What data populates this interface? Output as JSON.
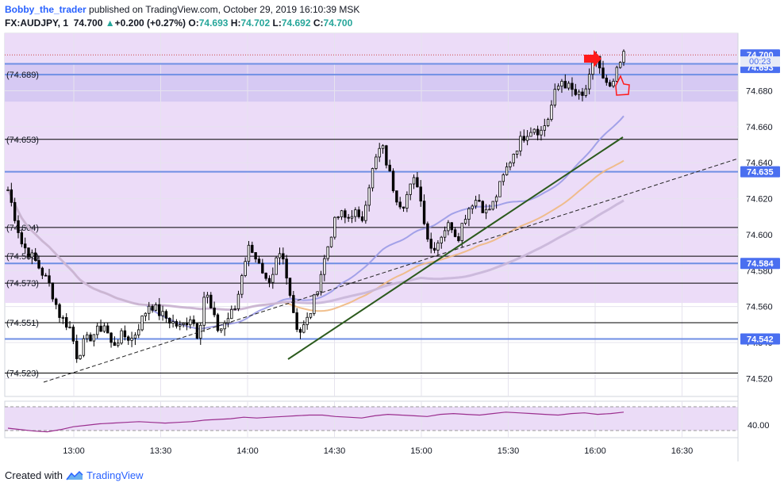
{
  "header": {
    "author": "Bobby_the_trader",
    "published": "published on TradingView.com, October 29, 2019 16:10:39 MSK",
    "symbol": "FX:AUDJPY, 1",
    "last": "74.700",
    "change_arrow": "▲",
    "change": "+0.200 (+0.27%)",
    "o_label": "O:",
    "o": "74.693",
    "h_label": "H:",
    "h": "74.702",
    "l_label": "L:",
    "l": "74.692",
    "c_label": "C:",
    "c": "74.700"
  },
  "footer": {
    "created_with": "Created with",
    "brand": "TradingView"
  },
  "colors": {
    "background_zone": "#ecdcf8",
    "dark_zone": "#d6c9f3",
    "blue_level": "#6f8fe4",
    "black_level": "#000000",
    "trendline": "#2b5a1c",
    "ma_fast": "#9a9ae6",
    "ma_mid": "#f0b880",
    "ma_slow": "#c9b6d8",
    "price_badge": "#4a6ff0",
    "annotation": "#ff1a1a",
    "rsi_line": "#9b2f8f"
  },
  "chart_data": {
    "type": "candlestick",
    "symbol": "FX:AUDJPY",
    "interval": "1",
    "x_tick_labels": [
      "13:00",
      "13:30",
      "14:00",
      "14:30",
      "15:00",
      "15:30",
      "16:00",
      "16:30"
    ],
    "ylim": [
      74.51,
      74.712
    ],
    "y_tick_labels": [
      "74.520",
      "74.540",
      "74.560",
      "74.580",
      "74.600",
      "74.620",
      "74.640",
      "74.660",
      "74.680"
    ],
    "y_tick_values": [
      74.52,
      74.54,
      74.56,
      74.58,
      74.6,
      74.62,
      74.64,
      74.66,
      74.68
    ],
    "horizontal_levels": [
      {
        "label": "(74.689)",
        "value": 74.689,
        "color": "blue"
      },
      {
        "label": "(74.653)",
        "value": 74.653,
        "color": "black"
      },
      {
        "label": "(74.604)",
        "value": 74.604,
        "color": "black"
      },
      {
        "label": "(74.588)",
        "value": 74.588,
        "color": "black"
      },
      {
        "label": "(74.573)",
        "value": 74.573,
        "color": "black"
      },
      {
        "label": "(74.551)",
        "value": 74.551,
        "color": "black"
      },
      {
        "label": "(74.523)",
        "value": 74.523,
        "color": "black"
      }
    ],
    "marked_levels": [
      {
        "label": "74.700",
        "value": 74.7
      },
      {
        "label": "74.693",
        "value": 74.693
      },
      {
        "label": "74.635",
        "value": 74.635
      },
      {
        "label": "74.584",
        "value": 74.584
      },
      {
        "label": "74.542",
        "value": 74.542
      }
    ],
    "extra_level_values": [
      74.695
    ],
    "countdown": "00:23",
    "last_price": 74.7,
    "close_path": [
      [
        0,
        74.625
      ],
      [
        4,
        74.595
      ],
      [
        8,
        74.585
      ],
      [
        12,
        74.572
      ],
      [
        15,
        74.555
      ],
      [
        18,
        74.548
      ],
      [
        20,
        74.532
      ],
      [
        22,
        74.54
      ],
      [
        25,
        74.545
      ],
      [
        28,
        74.55
      ],
      [
        30,
        74.538
      ],
      [
        33,
        74.544
      ],
      [
        36,
        74.542
      ],
      [
        38,
        74.55
      ],
      [
        41,
        74.562
      ],
      [
        44,
        74.556
      ],
      [
        47,
        74.552
      ],
      [
        50,
        74.548
      ],
      [
        53,
        74.555
      ],
      [
        55,
        74.543
      ],
      [
        57,
        74.57
      ],
      [
        59,
        74.556
      ],
      [
        61,
        74.546
      ],
      [
        63,
        74.552
      ],
      [
        66,
        74.56
      ],
      [
        68,
        74.583
      ],
      [
        70,
        74.595
      ],
      [
        72,
        74.586
      ],
      [
        74,
        74.574
      ],
      [
        76,
        74.57
      ],
      [
        78,
        74.59
      ],
      [
        80,
        74.585
      ],
      [
        82,
        74.562
      ],
      [
        84,
        74.545
      ],
      [
        86,
        74.55
      ],
      [
        88,
        74.56
      ],
      [
        90,
        74.575
      ],
      [
        92,
        74.59
      ],
      [
        94,
        74.605
      ],
      [
        96,
        74.612
      ],
      [
        98,
        74.608
      ],
      [
        100,
        74.614
      ],
      [
        102,
        74.605
      ],
      [
        104,
        74.625
      ],
      [
        106,
        74.64
      ],
      [
        108,
        74.65
      ],
      [
        110,
        74.636
      ],
      [
        112,
        74.622
      ],
      [
        114,
        74.616
      ],
      [
        116,
        74.625
      ],
      [
        118,
        74.632
      ],
      [
        120,
        74.612
      ],
      [
        122,
        74.592
      ],
      [
        124,
        74.595
      ],
      [
        126,
        74.603
      ],
      [
        128,
        74.606
      ],
      [
        130,
        74.598
      ],
      [
        132,
        74.61
      ],
      [
        134,
        74.618
      ],
      [
        136,
        74.62
      ],
      [
        138,
        74.612
      ],
      [
        140,
        74.616
      ],
      [
        142,
        74.626
      ],
      [
        144,
        74.636
      ],
      [
        146,
        74.645
      ],
      [
        148,
        74.652
      ],
      [
        150,
        74.657
      ],
      [
        152,
        74.66
      ],
      [
        154,
        74.657
      ],
      [
        156,
        74.664
      ],
      [
        158,
        74.678
      ],
      [
        160,
        74.686
      ],
      [
        162,
        74.682
      ],
      [
        164,
        74.678
      ],
      [
        166,
        74.676
      ],
      [
        168,
        74.686
      ],
      [
        170,
        74.7
      ],
      [
        172,
        74.686
      ],
      [
        174,
        74.68
      ],
      [
        176,
        74.69
      ],
      [
        178,
        74.7
      ]
    ],
    "rsi": {
      "visible_levels": [
        "40.00"
      ],
      "values": [
        38,
        36,
        34,
        33,
        36,
        40,
        42,
        44,
        45,
        46,
        47,
        46,
        45,
        46,
        47,
        49,
        50,
        51,
        53,
        52,
        53,
        54,
        55,
        56,
        56,
        54,
        53,
        52,
        55,
        57,
        56,
        55,
        54,
        57,
        58,
        57,
        56,
        58,
        60,
        59,
        58,
        57,
        56,
        58,
        59,
        57,
        58,
        60
      ]
    }
  }
}
